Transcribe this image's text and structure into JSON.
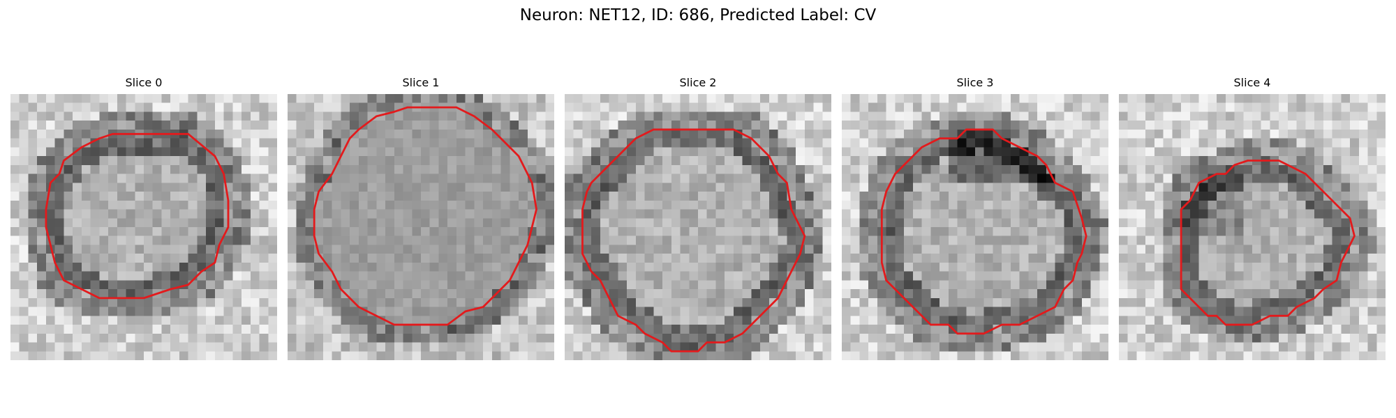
{
  "figure": {
    "title": "Neuron: NET12, ID: 686, Predicted Label: CV"
  },
  "panels": [
    {
      "title": "Slice 0",
      "contour": [
        [
          11.5,
          4.5
        ],
        [
          20,
          4.5
        ],
        [
          23,
          7
        ],
        [
          24,
          9
        ],
        [
          24.5,
          12
        ],
        [
          24.5,
          15
        ],
        [
          23.5,
          17
        ],
        [
          23,
          19
        ],
        [
          21.5,
          20
        ],
        [
          20,
          21.5
        ],
        [
          18,
          22
        ],
        [
          15,
          23
        ],
        [
          10,
          23
        ],
        [
          8,
          22
        ],
        [
          6,
          21
        ],
        [
          5,
          19
        ],
        [
          4.5,
          17
        ],
        [
          4,
          15
        ],
        [
          4,
          13
        ],
        [
          4.5,
          10
        ],
        [
          5.5,
          9
        ],
        [
          6,
          7.5
        ],
        [
          8,
          6
        ],
        [
          9,
          5.5
        ],
        [
          10,
          5
        ]
      ],
      "background": "dark-ring"
    },
    {
      "title": "Slice 1",
      "contour": [
        [
          13.5,
          1.5
        ],
        [
          19,
          1.5
        ],
        [
          20,
          2
        ],
        [
          21,
          2.5
        ],
        [
          23,
          4
        ],
        [
          24,
          5
        ],
        [
          25,
          6
        ],
        [
          26,
          7
        ],
        [
          27,
          9
        ],
        [
          27.5,
          10
        ],
        [
          28,
          13
        ],
        [
          27.5,
          15
        ],
        [
          27,
          17
        ],
        [
          26,
          19
        ],
        [
          25,
          21
        ],
        [
          24,
          22
        ],
        [
          22,
          24
        ],
        [
          20,
          24.5
        ],
        [
          18,
          26
        ],
        [
          12,
          26
        ],
        [
          10,
          25
        ],
        [
          8,
          24
        ],
        [
          6,
          22
        ],
        [
          5,
          20
        ],
        [
          3.5,
          18
        ],
        [
          3,
          16
        ],
        [
          3,
          13
        ],
        [
          3.5,
          11
        ],
        [
          5,
          9
        ],
        [
          6,
          7
        ],
        [
          7,
          5
        ],
        [
          8,
          4
        ],
        [
          10,
          2.5
        ],
        [
          12,
          2
        ]
      ],
      "background": "uniform-dark"
    },
    {
      "title": "Slice 2",
      "contour": [
        [
          10,
          4
        ],
        [
          19,
          4
        ],
        [
          21,
          5
        ],
        [
          22,
          6
        ],
        [
          23,
          7
        ],
        [
          24,
          9
        ],
        [
          25,
          10
        ],
        [
          25.5,
          13
        ],
        [
          26.5,
          15
        ],
        [
          27,
          16
        ],
        [
          26.5,
          18
        ],
        [
          26,
          19
        ],
        [
          25,
          21
        ],
        [
          24,
          23
        ],
        [
          23,
          24
        ],
        [
          22,
          25
        ],
        [
          20,
          27
        ],
        [
          18,
          28
        ],
        [
          16,
          28
        ],
        [
          15,
          29
        ],
        [
          12,
          29
        ],
        [
          11,
          28
        ],
        [
          9,
          27
        ],
        [
          8,
          26
        ],
        [
          6,
          25
        ],
        [
          5,
          23
        ],
        [
          4,
          21
        ],
        [
          3,
          20
        ],
        [
          2,
          18
        ],
        [
          2,
          13
        ],
        [
          2.5,
          11
        ],
        [
          3,
          10
        ],
        [
          4,
          9
        ],
        [
          6,
          7
        ],
        [
          8,
          5
        ]
      ],
      "background": "dark-ring"
    },
    {
      "title": "Slice 3",
      "contour": [
        [
          14,
          4
        ],
        [
          17,
          4
        ],
        [
          18,
          5
        ],
        [
          20,
          6
        ],
        [
          22,
          7
        ],
        [
          23,
          8
        ],
        [
          24,
          10
        ],
        [
          26,
          11
        ],
        [
          27,
          14
        ],
        [
          27.5,
          16
        ],
        [
          27,
          18
        ],
        [
          26.5,
          19
        ],
        [
          26,
          21
        ],
        [
          25,
          22
        ],
        [
          24,
          24
        ],
        [
          22,
          25
        ],
        [
          20,
          26
        ],
        [
          18,
          26
        ],
        [
          16,
          27
        ],
        [
          13,
          27
        ],
        [
          12,
          26
        ],
        [
          10,
          26
        ],
        [
          8,
          24
        ],
        [
          6,
          22
        ],
        [
          5,
          21
        ],
        [
          4.5,
          19
        ],
        [
          4.5,
          16
        ],
        [
          4.5,
          13
        ],
        [
          5,
          11
        ],
        [
          6,
          9
        ],
        [
          8,
          7
        ],
        [
          9,
          6
        ],
        [
          11,
          5
        ],
        [
          13,
          5
        ]
      ],
      "background": "dark-top"
    },
    {
      "title": "Slice 4",
      "contour": [
        [
          14.5,
          7.5
        ],
        [
          18,
          7.5
        ],
        [
          19,
          8
        ],
        [
          21,
          9
        ],
        [
          22,
          10
        ],
        [
          23,
          11
        ],
        [
          25,
          13
        ],
        [
          26,
          14
        ],
        [
          26.5,
          16
        ],
        [
          25.5,
          18
        ],
        [
          25,
          19
        ],
        [
          24.5,
          21
        ],
        [
          23,
          22
        ],
        [
          22,
          23
        ],
        [
          20,
          24
        ],
        [
          19,
          25
        ],
        [
          17,
          25
        ],
        [
          15,
          26
        ],
        [
          12,
          26
        ],
        [
          11,
          25
        ],
        [
          10,
          25
        ],
        [
          9,
          24
        ],
        [
          8,
          23
        ],
        [
          7,
          22
        ],
        [
          7,
          19
        ],
        [
          7,
          15
        ],
        [
          7,
          13
        ],
        [
          8,
          12
        ],
        [
          9,
          10
        ],
        [
          11,
          9
        ],
        [
          12,
          9
        ],
        [
          13,
          8
        ]
      ],
      "background": "dark-ring-small"
    }
  ],
  "colors": {
    "contour": "#e31a1c"
  }
}
